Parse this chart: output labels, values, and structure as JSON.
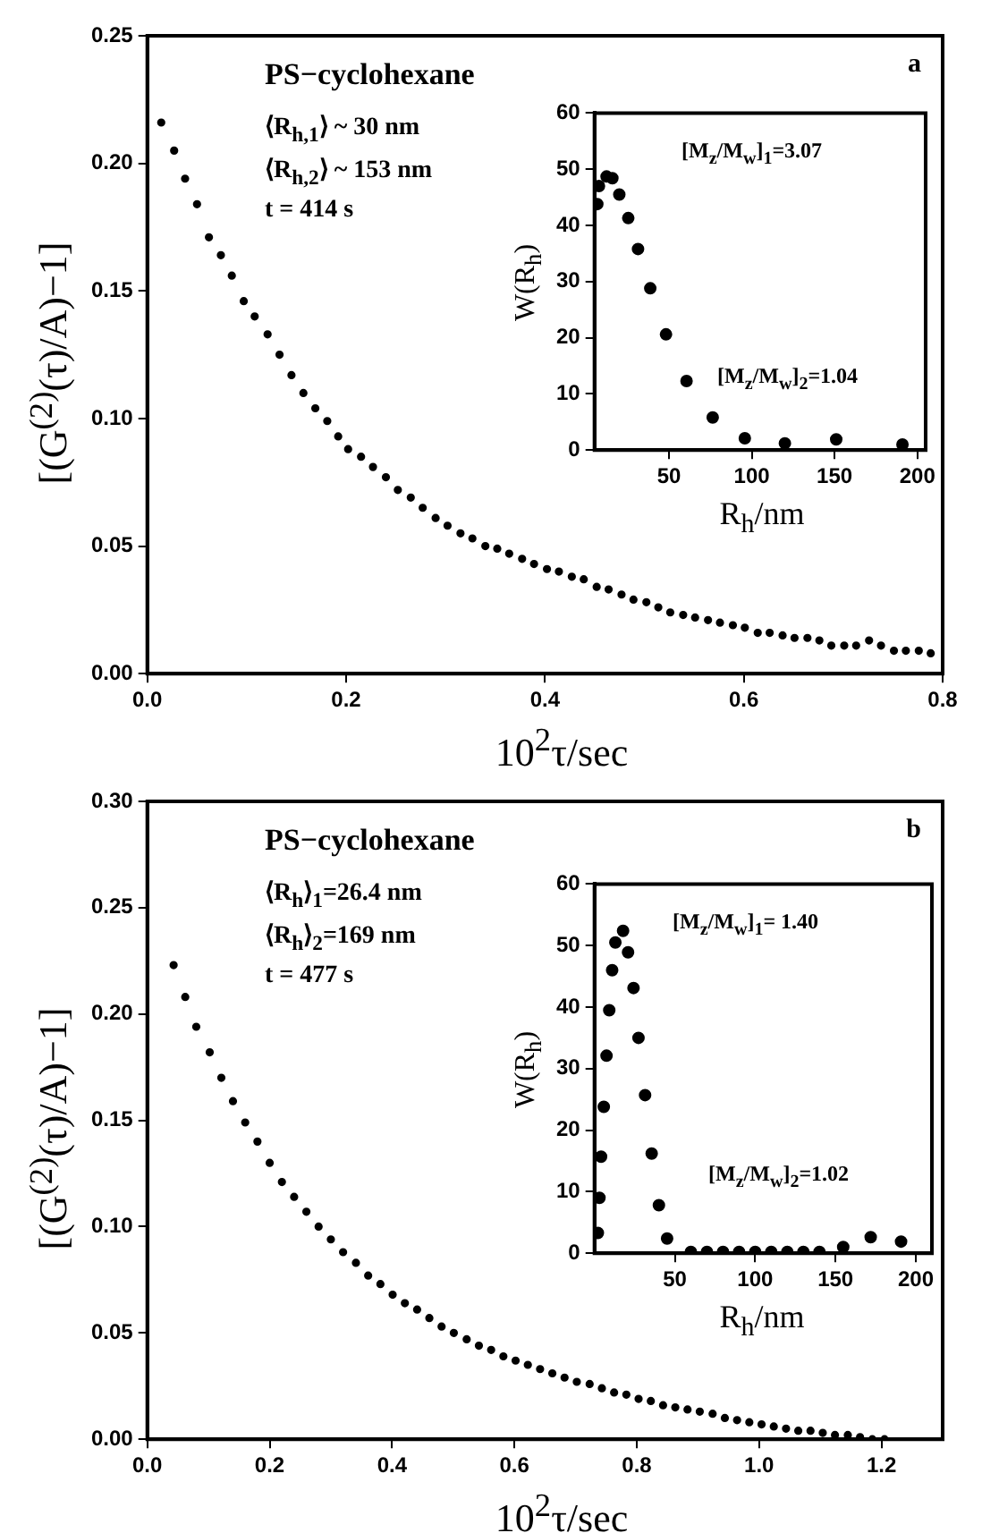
{
  "chart_data": [
    {
      "type": "scatter",
      "xlabel": "10$^{2}$τ/sec",
      "ylabel": "[(G$^{(2)}$(τ)/A)−1]",
      "color": "#000000",
      "marker": "circle",
      "x": [
        0.014,
        0.027,
        0.038,
        0.05,
        0.062,
        0.074,
        0.085,
        0.097,
        0.108,
        0.121,
        0.133,
        0.145,
        0.157,
        0.169,
        0.181,
        0.192,
        0.202,
        0.215,
        0.227,
        0.24,
        0.252,
        0.265,
        0.277,
        0.29,
        0.302,
        0.315,
        0.327,
        0.34,
        0.352,
        0.364,
        0.377,
        0.389,
        0.402,
        0.414,
        0.427,
        0.439,
        0.452,
        0.464,
        0.477,
        0.489,
        0.502,
        0.514,
        0.526,
        0.539,
        0.551,
        0.564,
        0.576,
        0.589,
        0.601,
        0.614,
        0.626,
        0.639,
        0.651,
        0.664,
        0.676,
        0.688,
        0.701,
        0.713,
        0.726,
        0.738,
        0.751,
        0.763,
        0.776,
        0.788
      ],
      "values": [
        0.216,
        0.205,
        0.194,
        0.184,
        0.171,
        0.164,
        0.156,
        0.146,
        0.14,
        0.133,
        0.125,
        0.117,
        0.11,
        0.104,
        0.099,
        0.093,
        0.088,
        0.085,
        0.081,
        0.077,
        0.072,
        0.069,
        0.065,
        0.061,
        0.058,
        0.055,
        0.053,
        0.05,
        0.049,
        0.047,
        0.045,
        0.043,
        0.041,
        0.04,
        0.038,
        0.037,
        0.034,
        0.033,
        0.031,
        0.029,
        0.028,
        0.026,
        0.024,
        0.023,
        0.022,
        0.021,
        0.02,
        0.019,
        0.018,
        0.016,
        0.016,
        0.015,
        0.014,
        0.014,
        0.013,
        0.011,
        0.011,
        0.011,
        0.013,
        0.011,
        0.009,
        0.009,
        0.009,
        0.008
      ],
      "xlim": [
        0,
        0.8
      ],
      "xticks": [
        {
          "value": 0,
          "label": "0.0"
        },
        {
          "value": 0.2,
          "label": "0.2"
        },
        {
          "value": 0.4,
          "label": "0.4"
        },
        {
          "value": 0.6,
          "label": "0.6"
        },
        {
          "value": 0.8,
          "label": "0.8"
        }
      ],
      "ylim": [
        0,
        0.25
      ],
      "yticks": [
        {
          "value": 0,
          "label": "0.00"
        },
        {
          "value": 0.05,
          "label": "0.05"
        },
        {
          "value": 0.1,
          "label": "0.10"
        },
        {
          "value": 0.15,
          "label": "0.15"
        },
        {
          "value": 0.2,
          "label": "0.20"
        },
        {
          "value": 0.25,
          "label": "0.25"
        }
      ],
      "annotations": [
        "PS−cyclohexane",
        "⟨R$_{h,1}$⟩ ~ 30 nm",
        "⟨R$_{h,2}$⟩ ~ 153 nm",
        "t = 414 s",
        "a"
      ]
    },
    {
      "type": "scatter",
      "xlabel": "R$_{h}$/nm",
      "ylabel": "W(R$_{h}$)",
      "color": "#000000",
      "marker": "circle",
      "x": [
        6.7,
        7.7,
        12.3,
        15.8,
        20,
        25.4,
        31.3,
        38.7,
        48.2,
        60.6,
        76.4,
        95.8,
        120,
        151,
        191
      ],
      "values": [
        43.8,
        47,
        48.7,
        48.4,
        45.5,
        41.3,
        35.8,
        28.8,
        20.6,
        12.3,
        5.8,
        2.1,
        1.2,
        1.9,
        1
      ],
      "xlim": [
        5,
        205
      ],
      "xticks": [
        50,
        100,
        150,
        200
      ],
      "ylim": [
        0,
        60
      ],
      "yticks": [
        0,
        10,
        20,
        30,
        40,
        50,
        60
      ],
      "annotations": [
        "[M$_{z}$/M$_{w}$]$_{1}$=3.07",
        "[M$_{z}$/M$_{w}$]$_{2}$=1.04"
      ]
    },
    {
      "type": "scatter",
      "xlabel": "10$^{2}$τ/sec",
      "ylabel": "[(G$^{(2)}$(τ)/A)−1]",
      "color": "#000000",
      "marker": "circle",
      "x": [
        0.043,
        0.062,
        0.08,
        0.102,
        0.121,
        0.14,
        0.16,
        0.18,
        0.2,
        0.22,
        0.24,
        0.26,
        0.28,
        0.3,
        0.32,
        0.341,
        0.361,
        0.381,
        0.401,
        0.421,
        0.441,
        0.461,
        0.481,
        0.501,
        0.522,
        0.542,
        0.562,
        0.582,
        0.602,
        0.622,
        0.642,
        0.662,
        0.682,
        0.702,
        0.723,
        0.743,
        0.763,
        0.783,
        0.803,
        0.823,
        0.843,
        0.863,
        0.883,
        0.903,
        0.924,
        0.944,
        0.964,
        0.984,
        1.004,
        1.024,
        1.044,
        1.064,
        1.084,
        1.104,
        1.124,
        1.145,
        1.165,
        1.185,
        1.205
      ],
      "values": [
        0.223,
        0.208,
        0.194,
        0.182,
        0.17,
        0.159,
        0.149,
        0.14,
        0.13,
        0.121,
        0.114,
        0.107,
        0.1,
        0.094,
        0.088,
        0.083,
        0.077,
        0.073,
        0.068,
        0.064,
        0.061,
        0.057,
        0.053,
        0.05,
        0.047,
        0.044,
        0.042,
        0.039,
        0.037,
        0.035,
        0.033,
        0.031,
        0.029,
        0.027,
        0.026,
        0.024,
        0.022,
        0.021,
        0.019,
        0.018,
        0.016,
        0.015,
        0.014,
        0.013,
        0.012,
        0.01,
        0.009,
        0.008,
        0.007,
        0.006,
        0.005,
        0.004,
        0.004,
        0.003,
        0.002,
        0.002,
        0.001,
        0,
        0
      ],
      "xlim": [
        0,
        1.3
      ],
      "xticks": [
        {
          "value": 0,
          "label": "0.0"
        },
        {
          "value": 0.2,
          "label": "0.2"
        },
        {
          "value": 0.4,
          "label": "0.4"
        },
        {
          "value": 0.6,
          "label": "0.6"
        },
        {
          "value": 0.8,
          "label": "0.8"
        },
        {
          "value": 1,
          "label": "1.0"
        },
        {
          "value": 1.2,
          "label": "1.2"
        }
      ],
      "ylim": [
        0,
        0.3
      ],
      "yticks": [
        {
          "value": 0,
          "label": "0.00"
        },
        {
          "value": 0.05,
          "label": "0.05"
        },
        {
          "value": 0.1,
          "label": "0.10"
        },
        {
          "value": 0.15,
          "label": "0.15"
        },
        {
          "value": 0.2,
          "label": "0.20"
        },
        {
          "value": 0.25,
          "label": "0.25"
        },
        {
          "value": 0.3,
          "label": "0.30"
        }
      ],
      "annotations": [
        "PS−cyclohexane",
        "⟨R$_{h}$⟩$_{1}$=26.4 nm",
        "⟨R$_{h}$⟩$_{2}$=169 nm",
        "t = 477 s",
        "b"
      ]
    },
    {
      "type": "scatter",
      "xlabel": "R$_{h}$/nm",
      "ylabel": "W(R$_{h}$)",
      "color": "#000000",
      "marker": "circle",
      "x": [
        2.1,
        3.1,
        4.1,
        5.8,
        7.5,
        9.2,
        11,
        13,
        17.8,
        20.9,
        24.3,
        27.4,
        31.5,
        35.6,
        40.1,
        45.2,
        60,
        70,
        80,
        90,
        100,
        110,
        120,
        130,
        140,
        154.8,
        171.9,
        190.8
      ],
      "values": [
        3.3,
        9,
        15.7,
        23.8,
        32.1,
        39.5,
        46,
        50.5,
        52.4,
        48.9,
        43.1,
        35,
        25.7,
        16.2,
        7.8,
        2.4,
        0.2,
        0.2,
        0.2,
        0.2,
        0.2,
        0.2,
        0.2,
        0.2,
        0.2,
        1,
        2.6,
        1.9
      ],
      "xlim": [
        0,
        210
      ],
      "xticks": [
        50,
        100,
        150,
        200
      ],
      "ylim": [
        0,
        60
      ],
      "yticks": [
        0,
        10,
        20,
        30,
        40,
        50,
        60
      ],
      "annotations": [
        "[M$_{z}$/M$_{w}$]$_{1}$= 1.40",
        "[M$_{z}$/M$_{w}$]$_{2}$=1.02"
      ]
    }
  ]
}
